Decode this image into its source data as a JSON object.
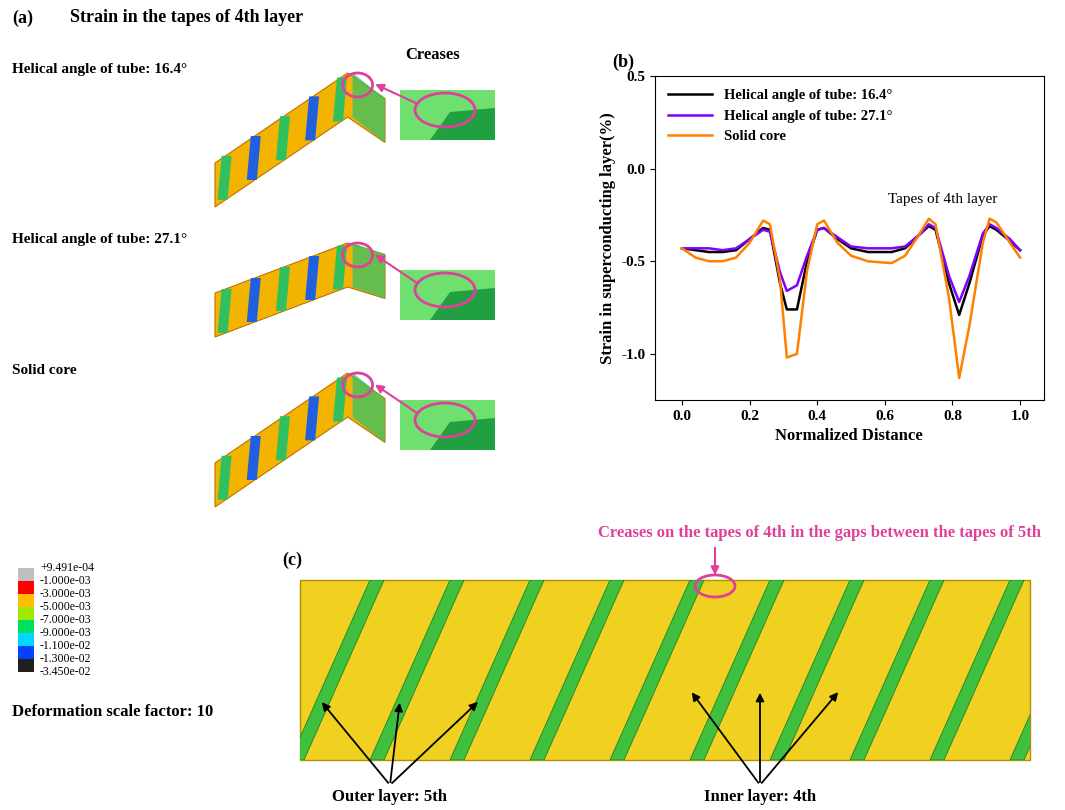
{
  "chart_data": {
    "type": "line",
    "title": "(b)",
    "x_label": "Normalized Distance",
    "y_label": "Strain in superconducting layer(%)",
    "annotation": "Tapes of 4th layer",
    "x": [
      0,
      0.04,
      0.08,
      0.12,
      0.16,
      0.2,
      0.24,
      0.26,
      0.29,
      0.31,
      0.34,
      0.37,
      0.4,
      0.42,
      0.46,
      0.5,
      0.55,
      0.62,
      0.66,
      0.7,
      0.73,
      0.75,
      0.79,
      0.82,
      0.85,
      0.89,
      0.91,
      0.93,
      0.97,
      1.0
    ],
    "series": [
      {
        "name": "Helical angle of tube: 16.4°",
        "color": "#000000",
        "values": [
          -0.43,
          -0.44,
          -0.45,
          -0.45,
          -0.44,
          -0.38,
          -0.32,
          -0.33,
          -0.62,
          -0.76,
          -0.76,
          -0.5,
          -0.33,
          -0.32,
          -0.38,
          -0.43,
          -0.45,
          -0.45,
          -0.43,
          -0.36,
          -0.31,
          -0.33,
          -0.62,
          -0.79,
          -0.62,
          -0.36,
          -0.31,
          -0.33,
          -0.39,
          -0.44
        ]
      },
      {
        "name": "Helical angle of tube: 27.1°",
        "color": "#7f00ff",
        "values": [
          -0.43,
          -0.43,
          -0.43,
          -0.44,
          -0.43,
          -0.38,
          -0.33,
          -0.34,
          -0.56,
          -0.66,
          -0.63,
          -0.47,
          -0.33,
          -0.32,
          -0.37,
          -0.42,
          -0.43,
          -0.43,
          -0.42,
          -0.36,
          -0.3,
          -0.32,
          -0.58,
          -0.72,
          -0.58,
          -0.35,
          -0.3,
          -0.32,
          -0.38,
          -0.44
        ]
      },
      {
        "name": "Solid core",
        "color": "#ff8000",
        "values": [
          -0.43,
          -0.48,
          -0.5,
          -0.5,
          -0.48,
          -0.4,
          -0.28,
          -0.3,
          -0.6,
          -1.02,
          -1.0,
          -0.55,
          -0.3,
          -0.28,
          -0.4,
          -0.47,
          -0.5,
          -0.51,
          -0.47,
          -0.36,
          -0.27,
          -0.3,
          -0.7,
          -1.13,
          -0.85,
          -0.4,
          -0.27,
          -0.29,
          -0.4,
          -0.48
        ]
      }
    ],
    "xlim": [
      -0.08,
      1.07
    ],
    "xticks": [
      {
        "value": 0,
        "label": "0.0"
      },
      {
        "value": 0.2,
        "label": "0.2"
      },
      {
        "value": 0.4,
        "label": "0.4"
      },
      {
        "value": 0.6,
        "label": "0.6"
      },
      {
        "value": 0.8,
        "label": "0.8"
      },
      {
        "value": 1.0,
        "label": "1.0"
      }
    ],
    "ylim": [
      -1.25,
      0.5
    ],
    "yticks": [
      {
        "value": -1.0,
        "label": "-1.0"
      },
      {
        "value": -0.5,
        "label": "-0.5"
      },
      {
        "value": 0,
        "label": "0.0"
      },
      {
        "value": 0.5,
        "label": "0.5"
      }
    ],
    "legend": "upper left"
  },
  "panel_a": {
    "label": "(a)",
    "title": "Strain in the tapes of 4th layer",
    "rows": [
      "Helical angle of tube: 16.4°",
      "Helical angle of tube: 27.1°",
      "Solid core"
    ],
    "crease_label": "Creases",
    "contour_legend": {
      "labels": [
        "+9.491e-04",
        "-1.000e-03",
        "-3.000e-03",
        "-5.000e-03",
        "-7.000e-03",
        "-9.000e-03",
        "-1.100e-02",
        "-1.300e-02",
        "-3.450e-02"
      ],
      "colors": [
        "#bfbfbf",
        "#ff0000",
        "#ffbf00",
        "#a0e800",
        "#00e060",
        "#00d8ff",
        "#0040ff",
        "#202020"
      ]
    },
    "scale_note": "Deformation scale factor: 10"
  },
  "panel_c": {
    "label": "(c)",
    "note": "Creases on the tapes of 4th in the gaps between the tapes of 5th",
    "outer_label": "Outer layer: 5th",
    "inner_label": "Inner layer: 4th"
  }
}
